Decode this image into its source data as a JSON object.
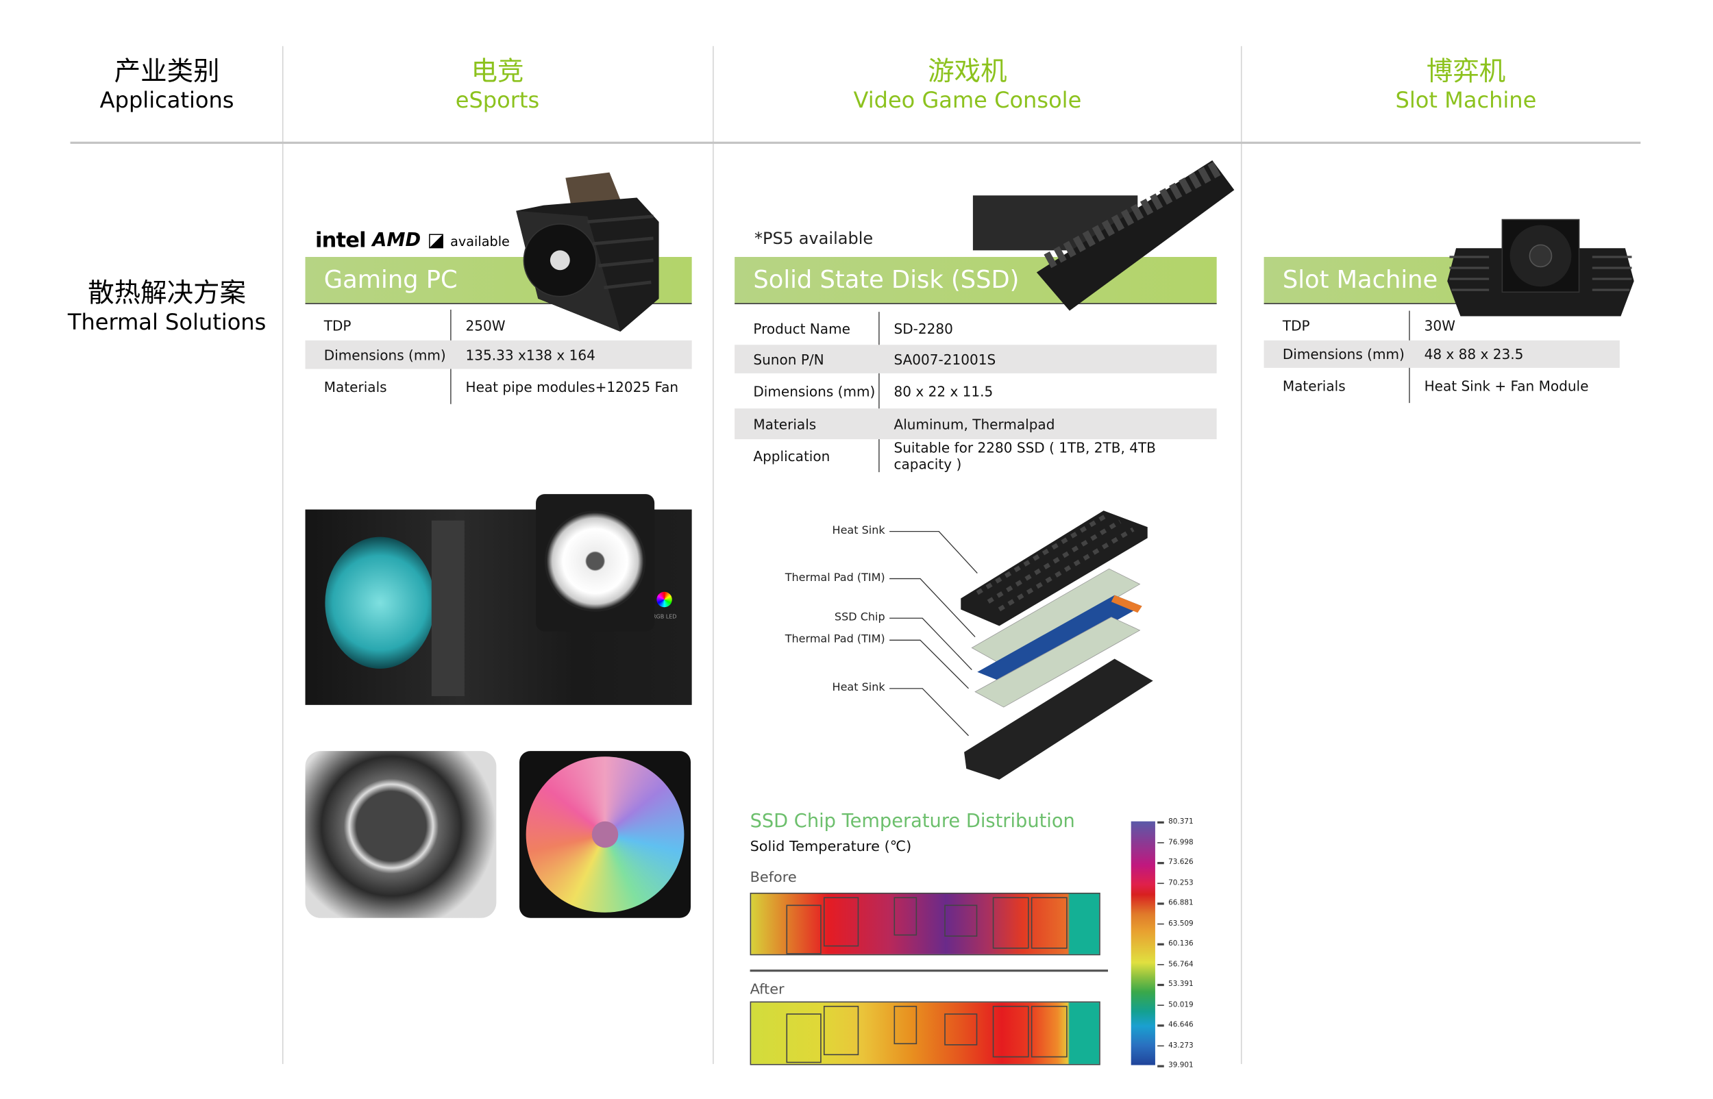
{
  "header": {
    "row_label": {
      "zh": "产业类别",
      "en": "Applications"
    },
    "columns": [
      {
        "zh": "电竞",
        "en": "eSports"
      },
      {
        "zh": "游戏机",
        "en": "Video Game Console"
      },
      {
        "zh": "博弈机",
        "en": "Slot Machine"
      }
    ],
    "accent_color": "#8cc21e"
  },
  "side_label": {
    "zh": "散热解决方案",
    "en": "Thermal Solutions"
  },
  "gaming_pc": {
    "logos": [
      "intel",
      "AMD"
    ],
    "available": "available",
    "title": "Gaming PC",
    "rows": [
      {
        "k": "TDP",
        "v": "250W"
      },
      {
        "k": "Dimensions (mm)",
        "v": "135.33 x138 x 164"
      },
      {
        "k": "Materials",
        "v": "Heat pipe modules+12025 Fan"
      }
    ],
    "rgb_led": "RGB LED"
  },
  "console": {
    "note": "*PS5 available",
    "title": "Solid State Disk (SSD)",
    "rows": [
      {
        "k": "Product Name",
        "v": "SD-2280"
      },
      {
        "k": "Sunon P/N",
        "v": "SA007-21001S"
      },
      {
        "k": "Dimensions (mm)",
        "v": "80 x 22 x 11.5"
      },
      {
        "k": "Materials",
        "v": "Aluminum, Thermalpad"
      },
      {
        "k": "Application",
        "v": "Suitable for 2280 SSD ( 1TB, 2TB, 4TB capacity )"
      }
    ],
    "diagram_labels": [
      "Heat Sink",
      "Thermal Pad (TIM)",
      "SSD Chip",
      "Thermal Pad (TIM)",
      "Heat Sink"
    ],
    "temperature": {
      "title": "SSD Chip Temperature Distribution",
      "subtitle": "Solid Temperature (℃)",
      "before": "Before",
      "after": "After",
      "scale_ticks": [
        "80.371",
        "76.998",
        "73.626",
        "70.253",
        "66.881",
        "63.509",
        "60.136",
        "56.764",
        "53.391",
        "50.019",
        "46.646",
        "43.273",
        "39.901"
      ]
    }
  },
  "slot": {
    "title": "Slot Machine",
    "rows": [
      {
        "k": "TDP",
        "v": "30W"
      },
      {
        "k": "Dimensions (mm)",
        "v": "48 x 88 x 23.5"
      },
      {
        "k": "Materials",
        "v": "Heat Sink + Fan Module"
      }
    ]
  }
}
